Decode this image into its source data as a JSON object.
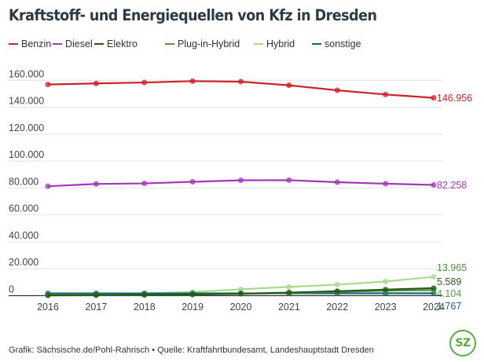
{
  "title": "Kraftstoff- und Energiequellen von Kfz in Dresden",
  "footer": {
    "credit": "Grafik: Sächsische.de/Pohl-Rahrisch • Quelle: Kraftfahrtbundesamt, Landeshauptstadt Dresden",
    "logo_text": "SZ",
    "logo_color": "#5aaa3c"
  },
  "chart_data": {
    "type": "line",
    "title": "Kraftstoff- und Energiequellen von Kfz in Dresden",
    "xlabel": "",
    "ylabel": "",
    "x": [
      "2016",
      "2017",
      "2018",
      "2019",
      "2020",
      "2021",
      "2022",
      "2023",
      "2024"
    ],
    "ylim": [
      0,
      160000
    ],
    "yticks": [
      0,
      20000,
      40000,
      60000,
      80000,
      100000,
      120000,
      140000,
      160000
    ],
    "ytick_labels": [
      "0",
      "20.000",
      "40.000",
      "60.000",
      "80.000",
      "100.000",
      "120.000",
      "140.000",
      "160.000"
    ],
    "grid": true,
    "legend_position": "top-left",
    "series": [
      {
        "name": "Benzin",
        "color": "#cc2229",
        "label_color": "#cc2229",
        "end_label": "146.956",
        "values": [
          156900,
          157700,
          158400,
          159400,
          159000,
          156300,
          152600,
          149500,
          146956
        ]
      },
      {
        "name": "Diesel",
        "color": "#a437b8",
        "label_color": "#a437b8",
        "end_label": "82.258",
        "values": [
          81300,
          83000,
          83400,
          84600,
          85700,
          85800,
          84300,
          83200,
          82258
        ]
      },
      {
        "name": "Elektro",
        "color": "#1e5b14",
        "label_color": "#2f5d22",
        "end_label": "5.589",
        "values": [
          300,
          400,
          600,
          900,
          1500,
          2300,
          3300,
          4500,
          5589
        ]
      },
      {
        "name": "Plug-in-Hybrid",
        "color": "#5b9a3e",
        "label_color": "#5b9a3e",
        "end_label": "4.104",
        "values": [
          200,
          300,
          500,
          800,
          1400,
          2000,
          2800,
          3600,
          4104
        ]
      },
      {
        "name": "Hybrid",
        "color": "#a7db8c",
        "label_color": "#4f8f35",
        "end_label": "13.965",
        "values": [
          800,
          1100,
          1700,
          2700,
          4700,
          6500,
          8200,
          10500,
          13965
        ]
      },
      {
        "name": "sonstige",
        "color": "#16657e",
        "label_color": "#16657e",
        "end_label": "1.767",
        "values": [
          1700,
          1700,
          1700,
          1700,
          1700,
          1700,
          1700,
          1750,
          1767
        ]
      }
    ]
  }
}
